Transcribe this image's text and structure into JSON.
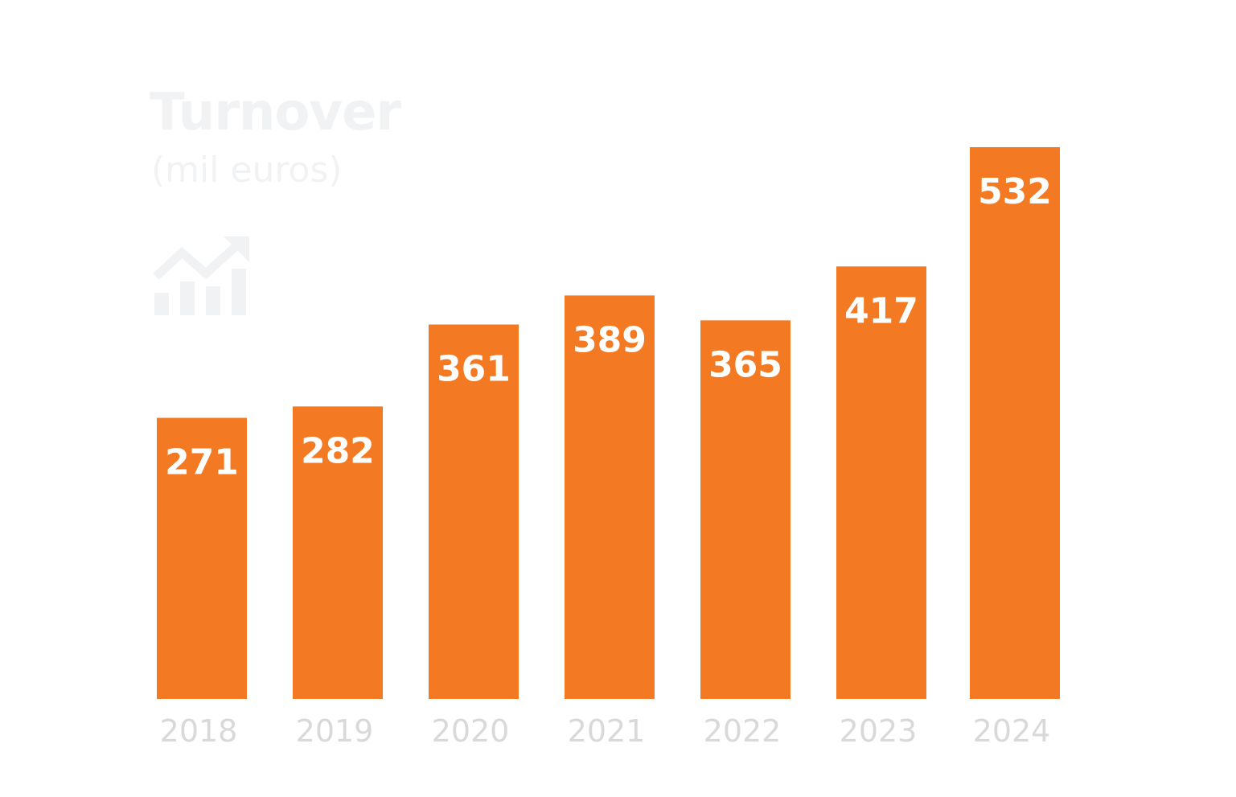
{
  "colors": {
    "bar": "#f37a23",
    "bar_label": "#ffffff",
    "muted_text": "#f1f2f4",
    "tick_text": "#d9d9db",
    "icon": "#f1f2f4"
  },
  "header": {
    "title": "Turnover",
    "subtitle": "(mil euros)",
    "icon": "bar-chart-trending-up-icon"
  },
  "chart_data": {
    "type": "bar",
    "title": "Turnover",
    "subtitle": "(mil euros)",
    "categories": [
      "2018",
      "2019",
      "2020",
      "2021",
      "2022",
      "2023",
      "2024"
    ],
    "values": [
      271,
      282,
      361,
      389,
      365,
      417,
      532
    ],
    "xlabel": "",
    "ylabel": "",
    "ylim": [
      0,
      532
    ],
    "grid": false,
    "legend": "none",
    "data_labels": true
  }
}
